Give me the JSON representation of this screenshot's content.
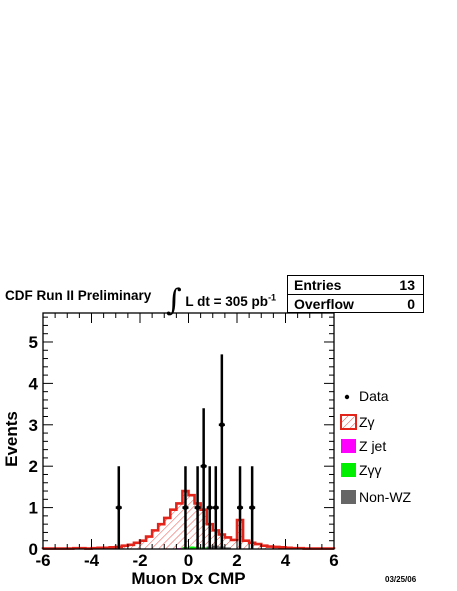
{
  "header": {
    "prefix": "CDF Run II Preliminary",
    "integral_symbol": "∫",
    "lumi_text": "L dt = 305 pb",
    "lumi_exponent": "-1"
  },
  "stats": {
    "entries_label": "Entries",
    "entries_value": "13",
    "overflow_label": "Overflow",
    "overflow_value": "0"
  },
  "legend": {
    "data_label": "Data",
    "zgamma_label": "Zγ",
    "zjet_label": "Z jet",
    "zgg_label": "Zγγ",
    "nonwz_label": "Non-WZ"
  },
  "datestamp": "03/25/06",
  "colors": {
    "zgamma": "#e3241b",
    "zjet": "#ff00ff",
    "zgg": "#00ee00",
    "nonwz": "#666666",
    "data": "#000000"
  },
  "chart_data": {
    "type": "histogram",
    "xlabel": "Muon Dx CMP",
    "ylabel": "Events",
    "xlim": [
      -6,
      6
    ],
    "ylim": [
      0,
      5.7
    ],
    "xticks": [
      -6,
      -4,
      -2,
      0,
      2,
      4,
      6
    ],
    "yticks": [
      0,
      1,
      2,
      3,
      4,
      5
    ],
    "bin_width": 0.25,
    "series": [
      {
        "name": "Zγ",
        "style": "red outline with hatched fill",
        "bins": [
          {
            "x": -6.0,
            "y": 0.01
          },
          {
            "x": -5.75,
            "y": 0.01
          },
          {
            "x": -5.5,
            "y": 0.01
          },
          {
            "x": -5.25,
            "y": 0.01
          },
          {
            "x": -5.0,
            "y": 0.01
          },
          {
            "x": -4.75,
            "y": 0.02
          },
          {
            "x": -4.5,
            "y": 0.02
          },
          {
            "x": -4.25,
            "y": 0.01
          },
          {
            "x": -4.0,
            "y": 0.02
          },
          {
            "x": -3.75,
            "y": 0.03
          },
          {
            "x": -3.5,
            "y": 0.03
          },
          {
            "x": -3.25,
            "y": 0.04
          },
          {
            "x": -3.0,
            "y": 0.05
          },
          {
            "x": -2.75,
            "y": 0.08
          },
          {
            "x": -2.5,
            "y": 0.1
          },
          {
            "x": -2.25,
            "y": 0.15
          },
          {
            "x": -2.0,
            "y": 0.2
          },
          {
            "x": -1.75,
            "y": 0.3
          },
          {
            "x": -1.5,
            "y": 0.45
          },
          {
            "x": -1.25,
            "y": 0.6
          },
          {
            "x": -1.0,
            "y": 0.75
          },
          {
            "x": -0.75,
            "y": 0.95
          },
          {
            "x": -0.5,
            "y": 1.1
          },
          {
            "x": -0.25,
            "y": 1.4
          },
          {
            "x": 0.0,
            "y": 1.3
          },
          {
            "x": 0.25,
            "y": 1.1
          },
          {
            "x": 0.5,
            "y": 0.95
          },
          {
            "x": 0.75,
            "y": 0.6
          },
          {
            "x": 1.0,
            "y": 0.45
          },
          {
            "x": 1.25,
            "y": 0.35
          },
          {
            "x": 1.5,
            "y": 0.28
          },
          {
            "x": 1.75,
            "y": 0.22
          },
          {
            "x": 2.0,
            "y": 0.7
          },
          {
            "x": 2.25,
            "y": 0.2
          },
          {
            "x": 2.5,
            "y": 0.15
          },
          {
            "x": 2.75,
            "y": 0.12
          },
          {
            "x": 3.0,
            "y": 0.08
          },
          {
            "x": 3.25,
            "y": 0.06
          },
          {
            "x": 3.5,
            "y": 0.05
          },
          {
            "x": 3.75,
            "y": 0.04
          },
          {
            "x": 4.0,
            "y": 0.03
          },
          {
            "x": 4.25,
            "y": 0.02
          },
          {
            "x": 4.5,
            "y": 0.02
          },
          {
            "x": 4.75,
            "y": 0.01
          },
          {
            "x": 5.0,
            "y": 0.01
          },
          {
            "x": 5.25,
            "y": 0.01
          },
          {
            "x": 5.5,
            "y": 0.01
          },
          {
            "x": 5.75,
            "y": 0.01
          }
        ]
      },
      {
        "name": "Z jet",
        "bins": [
          {
            "x": -0.5,
            "y": 0.02
          },
          {
            "x": -0.25,
            "y": 0.03
          },
          {
            "x": 0.0,
            "y": 0.03
          },
          {
            "x": 0.25,
            "y": 0.02
          }
        ]
      },
      {
        "name": "Zγγ",
        "bins": [
          {
            "x": -0.25,
            "y": 0.05
          },
          {
            "x": 0.0,
            "y": 0.06
          },
          {
            "x": 0.25,
            "y": 0.05
          },
          {
            "x": 0.5,
            "y": 0.04
          },
          {
            "x": 0.75,
            "y": 0.03
          }
        ]
      },
      {
        "name": "Non-WZ",
        "bins": [
          {
            "x": 0.75,
            "y": 0.06
          },
          {
            "x": 1.0,
            "y": 0.08
          },
          {
            "x": 1.25,
            "y": 0.06
          },
          {
            "x": 1.5,
            "y": 0.04
          }
        ]
      },
      {
        "name": "Data",
        "style": "points with vertical error bars",
        "points": [
          {
            "x": -2.875,
            "y": 1,
            "err_low": 1,
            "err_high": 1
          },
          {
            "x": -0.125,
            "y": 1,
            "err_low": 1,
            "err_high": 1
          },
          {
            "x": 0.375,
            "y": 1,
            "err_low": 1,
            "err_high": 1
          },
          {
            "x": 0.625,
            "y": 2,
            "err_low": 2,
            "err_high": 1.4
          },
          {
            "x": 0.875,
            "y": 1,
            "err_low": 1,
            "err_high": 1
          },
          {
            "x": 1.125,
            "y": 1,
            "err_low": 1,
            "err_high": 1
          },
          {
            "x": 1.375,
            "y": 3,
            "err_low": 3,
            "err_high": 1.7
          },
          {
            "x": 2.125,
            "y": 1,
            "err_low": 1,
            "err_high": 1
          },
          {
            "x": 2.625,
            "y": 1,
            "err_low": 1,
            "err_high": 1
          }
        ]
      }
    ]
  }
}
